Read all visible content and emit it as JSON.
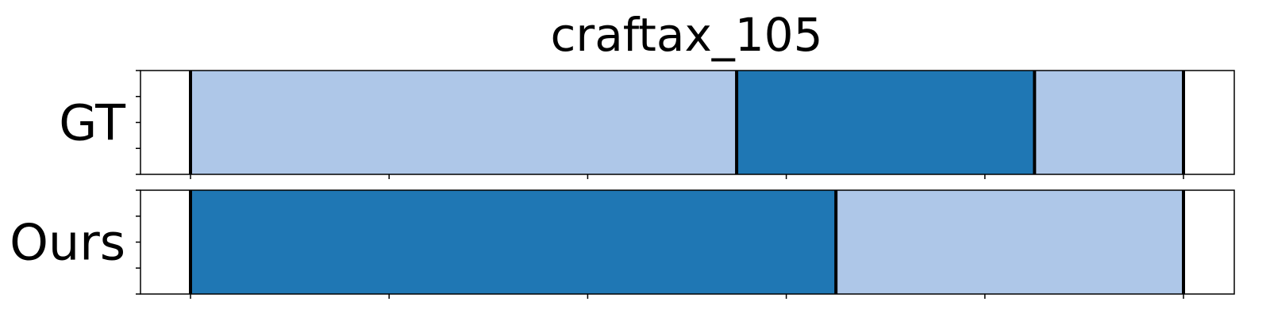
{
  "chart_data": {
    "type": "segmentation",
    "title": "craftax_105",
    "x_range": [
      0,
      160
    ],
    "x_ticks": [
      0,
      32,
      64,
      96,
      128,
      160
    ],
    "rows": [
      {
        "label": "GT",
        "segments": [
          {
            "start": 0,
            "end": 88,
            "color": "#aec7e8"
          },
          {
            "start": 88,
            "end": 136,
            "color": "#1f77b4"
          },
          {
            "start": 136,
            "end": 160,
            "color": "#aec7e8"
          }
        ],
        "boundaries": [
          0,
          88,
          136,
          160
        ]
      },
      {
        "label": "Ours",
        "segments": [
          {
            "start": 0,
            "end": 104,
            "color": "#1f77b4"
          },
          {
            "start": 104,
            "end": 160,
            "color": "#aec7e8"
          }
        ],
        "boundaries": [
          0,
          104,
          160
        ]
      }
    ]
  }
}
